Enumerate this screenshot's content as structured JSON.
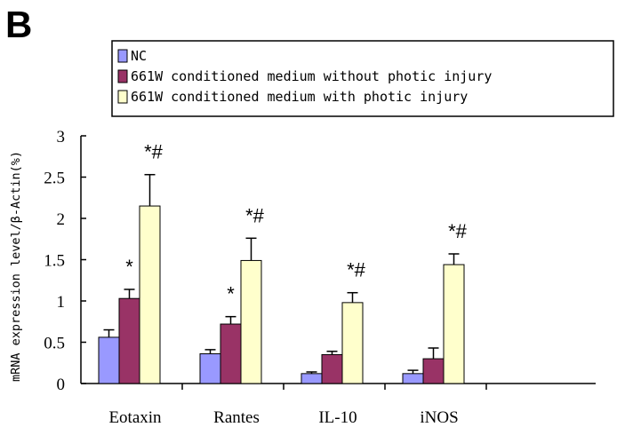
{
  "panel_label": "B",
  "colors": {
    "axis": "#000000",
    "bar_stroke": "#000000",
    "error": "#000000"
  },
  "chart_data": {
    "type": "bar",
    "title": "",
    "xlabel": "",
    "ylabel": "mRNA expression level/β-Actin(%)",
    "ylim": [
      0,
      3
    ],
    "yticks": [
      0,
      0.5,
      1,
      1.5,
      2,
      2.5,
      3
    ],
    "ytick_labels": [
      "0",
      "0.5",
      "1",
      "1.5",
      "2",
      "2.5",
      "3"
    ],
    "legend_position": "top",
    "categories": [
      "Eotaxin",
      "Rantes",
      "IL-10",
      "iNOS"
    ],
    "series": [
      {
        "name": "NC",
        "color": "#9999ff",
        "values": [
          0.56,
          0.36,
          0.12,
          0.12
        ],
        "errors": [
          0.09,
          0.05,
          0.02,
          0.04
        ],
        "significance": [
          "",
          "",
          "",
          ""
        ]
      },
      {
        "name": "661W conditioned medium without photic injury",
        "color": "#993366",
        "values": [
          1.03,
          0.72,
          0.35,
          0.3
        ],
        "errors": [
          0.11,
          0.09,
          0.04,
          0.13
        ],
        "significance": [
          "*",
          "*",
          "",
          ""
        ]
      },
      {
        "name": "661W conditioned medium with photic injury",
        "color": "#ffffcc",
        "values": [
          2.15,
          1.49,
          0.98,
          1.44
        ],
        "errors": [
          0.38,
          0.27,
          0.12,
          0.13
        ],
        "significance": [
          "*#",
          "*#",
          "*#",
          "*#"
        ]
      }
    ]
  }
}
